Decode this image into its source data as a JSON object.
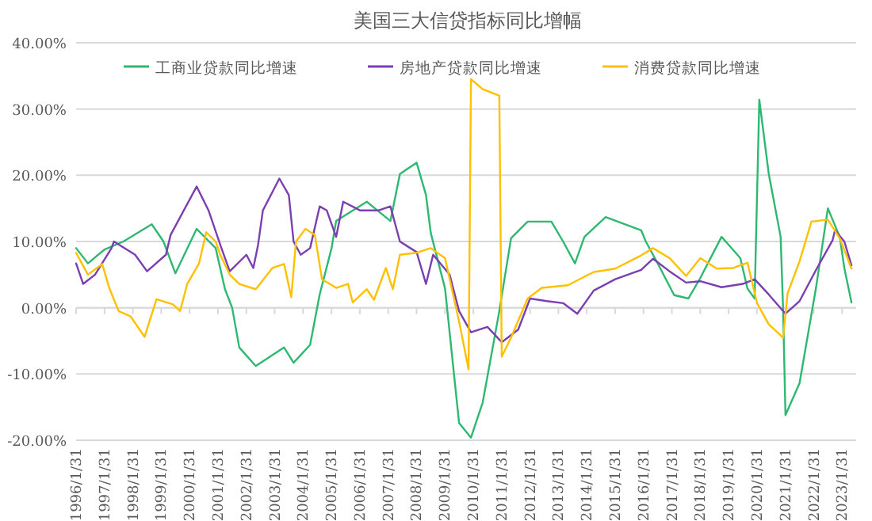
{
  "chart_data": {
    "type": "line",
    "title": "美国三大信贷指标同比增幅",
    "legend": "top",
    "grid": "y",
    "line_style": "solid",
    "xlim": [
      "1996-01-31",
      "2023-07-31"
    ],
    "xticks": [
      {
        "value": "1996-01-31",
        "label": "1996/1/31"
      },
      {
        "value": "1997-01-31",
        "label": "1997/1/31"
      },
      {
        "value": "1998-01-31",
        "label": "1998/1/31"
      },
      {
        "value": "1999-01-31",
        "label": "1999/1/31"
      },
      {
        "value": "2000-01-31",
        "label": "2000/1/31"
      },
      {
        "value": "2001-01-31",
        "label": "2001/1/31"
      },
      {
        "value": "2002-01-31",
        "label": "2002/1/31"
      },
      {
        "value": "2003-01-31",
        "label": "2003/1/31"
      },
      {
        "value": "2004-01-31",
        "label": "2004/1/31"
      },
      {
        "value": "2005-01-31",
        "label": "2005/1/31"
      },
      {
        "value": "2006-01-31",
        "label": "2006/1/31"
      },
      {
        "value": "2007-01-31",
        "label": "2007/1/31"
      },
      {
        "value": "2008-01-31",
        "label": "2008/1/31"
      },
      {
        "value": "2009-01-31",
        "label": "2009/1/31"
      },
      {
        "value": "2010-01-31",
        "label": "2010/1/31"
      },
      {
        "value": "2011-01-31",
        "label": "2011/1/31"
      },
      {
        "value": "2012-01-31",
        "label": "2012/1/31"
      },
      {
        "value": "2013-01-31",
        "label": "2013/1/31"
      },
      {
        "value": "2014-01-31",
        "label": "2014/1/31"
      },
      {
        "value": "2015-01-31",
        "label": "2015/1/31"
      },
      {
        "value": "2016-01-31",
        "label": "2016/1/31"
      },
      {
        "value": "2017-01-31",
        "label": "2017/1/31"
      },
      {
        "value": "2018-01-31",
        "label": "2018/1/31"
      },
      {
        "value": "2019-01-31",
        "label": "2019/1/31"
      },
      {
        "value": "2020-01-31",
        "label": "2020/1/31"
      },
      {
        "value": "2021-01-31",
        "label": "2021/1/31"
      },
      {
        "value": "2022-01-31",
        "label": "2022/1/31"
      },
      {
        "value": "2023-01-31",
        "label": "2023/1/31"
      }
    ],
    "ylim": [
      -20,
      40
    ],
    "yticks": [
      {
        "value": -20,
        "label": "-20.00%"
      },
      {
        "value": -10,
        "label": "-10.00%"
      },
      {
        "value": 0,
        "label": "0.00%"
      },
      {
        "value": 10,
        "label": "10.00%"
      },
      {
        "value": 20,
        "label": "20.00%"
      },
      {
        "value": 30,
        "label": "30.00%"
      },
      {
        "value": 40,
        "label": "40.00%"
      }
    ],
    "series": [
      {
        "name": "工商业贷款同比增速",
        "color": "#2eb872",
        "x": [
          "1996-01-31",
          "1996-07",
          "1997-02",
          "1997-10",
          "1998-10",
          "1999-03",
          "1999-08",
          "2000-05",
          "2001-01",
          "2001-05",
          "2001-08",
          "2001-11",
          "2002-06",
          "2003-06",
          "2003-10",
          "2004-05",
          "2004-09",
          "2005-02",
          "2005-04",
          "2006-05",
          "2007-03",
          "2007-07",
          "2008-02",
          "2008-06",
          "2008-08",
          "2009-02",
          "2009-08",
          "2010-01",
          "2010-06",
          "2011-01",
          "2011-06",
          "2012-01",
          "2012-11",
          "2013-04",
          "2013-09",
          "2014-01",
          "2014-10",
          "2016-01",
          "2016-03",
          "2016-08",
          "2017-03",
          "2017-09",
          "2018-02",
          "2018-11",
          "2019-02",
          "2019-07",
          "2019-10",
          "2020-01",
          "2020-03",
          "2020-07",
          "2020-12",
          "2021-01",
          "2021-02",
          "2021-08",
          "2022-03",
          "2022-08",
          "2023-01",
          "2023-03",
          "2023-06"
        ],
        "values": [
          9.0,
          6.7,
          8.8,
          10,
          12.6,
          10,
          5.2,
          11.9,
          9,
          2.8,
          0,
          -6,
          -8.8,
          -6,
          -8.3,
          -5.6,
          2,
          9,
          13.1,
          16,
          13.1,
          20.2,
          21.9,
          17,
          11.3,
          2.9,
          -17.4,
          -19.6,
          -14.3,
          -0.5,
          10.5,
          13,
          13,
          10,
          6.7,
          10.7,
          13.7,
          11.7,
          10,
          6.7,
          1.9,
          1.4,
          4.5,
          10.7,
          9.5,
          7.5,
          2.9,
          1.4,
          31.4,
          20.2,
          10.7,
          0,
          -16.2,
          -11.4,
          3,
          15,
          10.7,
          6,
          0.8
        ]
      },
      {
        "name": "房地产贷款同比增速",
        "color": "#7a3fb0",
        "x": [
          "1996-01-31",
          "1996-05",
          "1996-10",
          "1997-05",
          "1997-06",
          "1998-03",
          "1998-08",
          "1999-04",
          "1999-06",
          "2000-05",
          "2000-10",
          "2001-03",
          "2001-07",
          "2002-02",
          "2002-05",
          "2002-07",
          "2002-09",
          "2003-04",
          "2003-08",
          "2003-10",
          "2004-01",
          "2004-05",
          "2004-09",
          "2004-12",
          "2005-04",
          "2005-07",
          "2006-02",
          "2006-10",
          "2007-03",
          "2007-07",
          "2008-02",
          "2008-06",
          "2008-09",
          "2009-04",
          "2009-08",
          "2010-01",
          "2010-08",
          "2011-02",
          "2011-09",
          "2012-02",
          "2012-09",
          "2013-04",
          "2013-10",
          "2014-05",
          "2015-02",
          "2016-01",
          "2016-06",
          "2017-01",
          "2017-08",
          "2018-02",
          "2018-11",
          "2019-08",
          "2020-01",
          "2020-07",
          "2021-02",
          "2021-08",
          "2022-03",
          "2022-10",
          "2022-11",
          "2023-03",
          "2023-06"
        ],
        "values": [
          6.7,
          3.6,
          5,
          9,
          10,
          8,
          5.5,
          8,
          11,
          18.3,
          14.7,
          9.5,
          5.5,
          8,
          6,
          9.5,
          14.7,
          19.5,
          17,
          10,
          8,
          9,
          15.3,
          14.7,
          10.7,
          16,
          14.7,
          14.7,
          15.3,
          10,
          8.4,
          3.6,
          8,
          5,
          -0.5,
          -3.7,
          -2.9,
          -5.2,
          -3.3,
          1.4,
          1,
          0.7,
          -0.9,
          2.6,
          4.3,
          5.7,
          7.4,
          5.5,
          3.8,
          4,
          3.1,
          3.6,
          4.3,
          2,
          -0.9,
          1,
          5.7,
          10.2,
          11.7,
          10,
          6.4
        ]
      },
      {
        "name": "消费贷款同比增速",
        "color": "#ffc000",
        "x": [
          "1996-01-31",
          "1996-07",
          "1997-01",
          "1997-04",
          "1997-08",
          "1998-01",
          "1998-07",
          "1998-12",
          "1999-07",
          "1999-10",
          "2000-01",
          "2000-06",
          "2000-09",
          "2001-01",
          "2001-03",
          "2001-07",
          "2001-11",
          "2002-06",
          "2003-01",
          "2003-06",
          "2003-09",
          "2003-11",
          "2004-03",
          "2004-07",
          "2004-10",
          "2005-04",
          "2005-09",
          "2005-11",
          "2006-05",
          "2006-08",
          "2007-01",
          "2007-04",
          "2007-07",
          "2008-02",
          "2008-08",
          "2009-02",
          "2009-08",
          "2009-12",
          "2010-01",
          "2010-06",
          "2011-01",
          "2011-02",
          "2011-06",
          "2012-01",
          "2012-07",
          "2013-06",
          "2014-05",
          "2015-02",
          "2016-01",
          "2016-06",
          "2017-01",
          "2017-08",
          "2018-02",
          "2018-09",
          "2019-04",
          "2019-10",
          "2020-02",
          "2020-07",
          "2021-01",
          "2021-03",
          "2021-08",
          "2022-01",
          "2022-08",
          "2023-01",
          "2023-06"
        ],
        "values": [
          8.3,
          5,
          6.6,
          3,
          -0.5,
          -1.3,
          -4.4,
          1.3,
          0.5,
          -0.5,
          3.6,
          6.7,
          11.4,
          10,
          8,
          5,
          3.6,
          2.8,
          6,
          6.6,
          1.6,
          10,
          11.9,
          11,
          4.3,
          3,
          3.6,
          0.8,
          2.8,
          1.2,
          6,
          2.8,
          8,
          8.3,
          9,
          7.5,
          -2.1,
          -9.3,
          34.5,
          33,
          32,
          -7.4,
          -4.5,
          1.4,
          3,
          3.4,
          5.4,
          5.9,
          7.9,
          9,
          7.5,
          4.8,
          7.5,
          5.9,
          6,
          6.8,
          0.7,
          -2.5,
          -4.5,
          2.2,
          7,
          13,
          13.3,
          10.5,
          5.9
        ]
      }
    ]
  }
}
